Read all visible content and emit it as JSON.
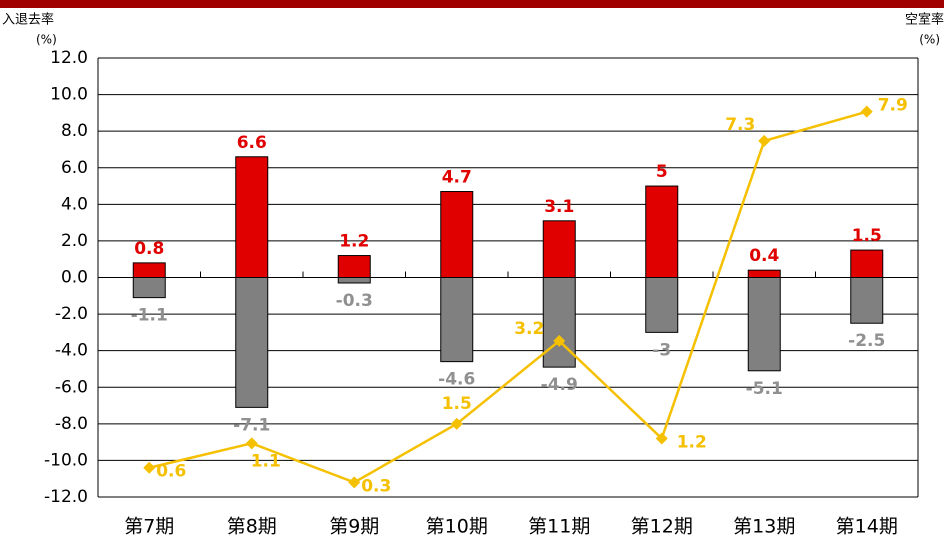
{
  "chart_data": {
    "type": "bar",
    "left_axis_label": "入退去率",
    "left_axis_unit": "(%)",
    "right_axis_label": "空室率",
    "right_axis_unit": "(%)",
    "categories": [
      "第7期",
      "第8期",
      "第9期",
      "第10期",
      "第11期",
      "第12期",
      "第13期",
      "第14期"
    ],
    "series": [
      {
        "type": "bar",
        "color": "#e00000",
        "values": [
          0.8,
          6.6,
          1.2,
          4.7,
          3.1,
          5.0,
          0.4,
          1.5
        ]
      },
      {
        "type": "bar",
        "color": "#808080",
        "values": [
          -1.1,
          -7.1,
          -0.3,
          -4.6,
          -4.9,
          -3.0,
          -5.1,
          -2.5
        ]
      },
      {
        "type": "line",
        "axis": "y2",
        "color": "#f5c000",
        "values": [
          0.6,
          1.1,
          0.3,
          1.5,
          3.2,
          1.2,
          7.3,
          7.9
        ]
      }
    ],
    "ylim": [
      -12,
      12
    ],
    "yticks": [
      {
        "value": -12,
        "label": "-12.0"
      },
      {
        "value": -10,
        "label": "-10.0"
      },
      {
        "value": -8,
        "label": "-8.0"
      },
      {
        "value": -6,
        "label": "-6.0"
      },
      {
        "value": -4,
        "label": "-4.0"
      },
      {
        "value": -2,
        "label": "-2.0"
      },
      {
        "value": 0,
        "label": "0.0"
      },
      {
        "value": 2,
        "label": "2.0"
      },
      {
        "value": 4,
        "label": "4.0"
      },
      {
        "value": 6,
        "label": "6.0"
      },
      {
        "value": 8,
        "label": "8.0"
      },
      {
        "value": 10,
        "label": "10.0"
      },
      {
        "value": 12,
        "label": "12.0"
      }
    ],
    "y2lim": [
      0,
      9
    ],
    "grid": true
  }
}
